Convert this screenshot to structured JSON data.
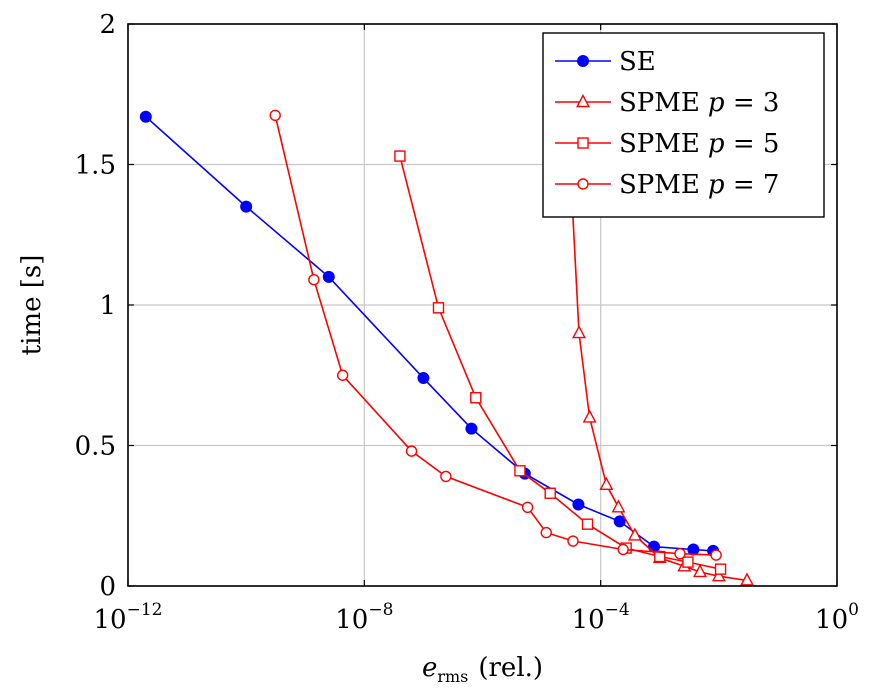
{
  "chart_data": {
    "type": "line",
    "xscale": "log",
    "xlim": [
      1e-12,
      1
    ],
    "ylim": [
      0,
      2
    ],
    "grid": true,
    "legend_position": "top-right",
    "xlabel_main": "e",
    "xlabel_sub": "rms",
    "xlabel_suffix": "(rel.)",
    "ylabel": "time [s]",
    "x_ticks": [
      {
        "value": 1e-12,
        "base": "10",
        "exp": "−12"
      },
      {
        "value": 1e-08,
        "base": "10",
        "exp": "−8"
      },
      {
        "value": 0.0001,
        "base": "10",
        "exp": "−4"
      },
      {
        "value": 1,
        "base": "10",
        "exp": "0"
      }
    ],
    "y_ticks": [
      {
        "value": 0,
        "label": "0"
      },
      {
        "value": 0.5,
        "label": "0.5"
      },
      {
        "value": 1,
        "label": "1"
      },
      {
        "value": 1.5,
        "label": "1.5"
      },
      {
        "value": 2,
        "label": "2"
      }
    ],
    "series": [
      {
        "name": "SE",
        "legend_prefix": "SE",
        "legend_var": "",
        "legend_suffix": "",
        "color": "#0000ff",
        "marker": "filled-circle",
        "x": [
          2e-12,
          1e-10,
          2.5e-09,
          1e-07,
          6.5e-07,
          5.2e-06,
          4.2e-05,
          0.00021,
          0.0008,
          0.0037,
          0.008
        ],
        "y": [
          1.67,
          1.35,
          1.1,
          0.74,
          0.56,
          0.4,
          0.29,
          0.23,
          0.14,
          0.13,
          0.125
        ]
      },
      {
        "name": "SPME p = 3",
        "legend_prefix": "SPME",
        "legend_var": "p",
        "legend_suffix": " = 3",
        "color": "#ff0000",
        "marker": "triangle",
        "x": [
          3.2e-05,
          4.3e-05,
          6.5e-05,
          0.000125,
          0.0002,
          0.00038,
          0.001,
          0.0026,
          0.0048,
          0.01,
          0.03
        ],
        "y": [
          1.42,
          0.9,
          0.6,
          0.36,
          0.28,
          0.18,
          0.1,
          0.07,
          0.05,
          0.035,
          0.02
        ]
      },
      {
        "name": "SPME p = 5",
        "legend_prefix": "SPME",
        "legend_var": "p",
        "legend_suffix": " = 5",
        "color": "#ff0000",
        "marker": "square",
        "x": [
          4e-08,
          1.8e-07,
          7.7e-07,
          4.3e-06,
          1.4e-05,
          6e-05,
          0.00027,
          0.001,
          0.003,
          0.0107
        ],
        "y": [
          1.53,
          0.99,
          0.67,
          0.41,
          0.33,
          0.22,
          0.135,
          0.105,
          0.085,
          0.06
        ]
      },
      {
        "name": "SPME p = 7",
        "legend_prefix": "SPME",
        "legend_var": "p",
        "legend_suffix": " = 7",
        "color": "#ff0000",
        "marker": "open-circle",
        "x": [
          3.1e-10,
          1.4e-09,
          4.3e-09,
          6.3e-08,
          2.4e-07,
          5.8e-06,
          1.2e-05,
          3.4e-05,
          0.00024,
          0.0022,
          0.009
        ],
        "y": [
          1.675,
          1.09,
          0.75,
          0.48,
          0.39,
          0.28,
          0.19,
          0.16,
          0.13,
          0.115,
          0.11
        ]
      }
    ]
  }
}
